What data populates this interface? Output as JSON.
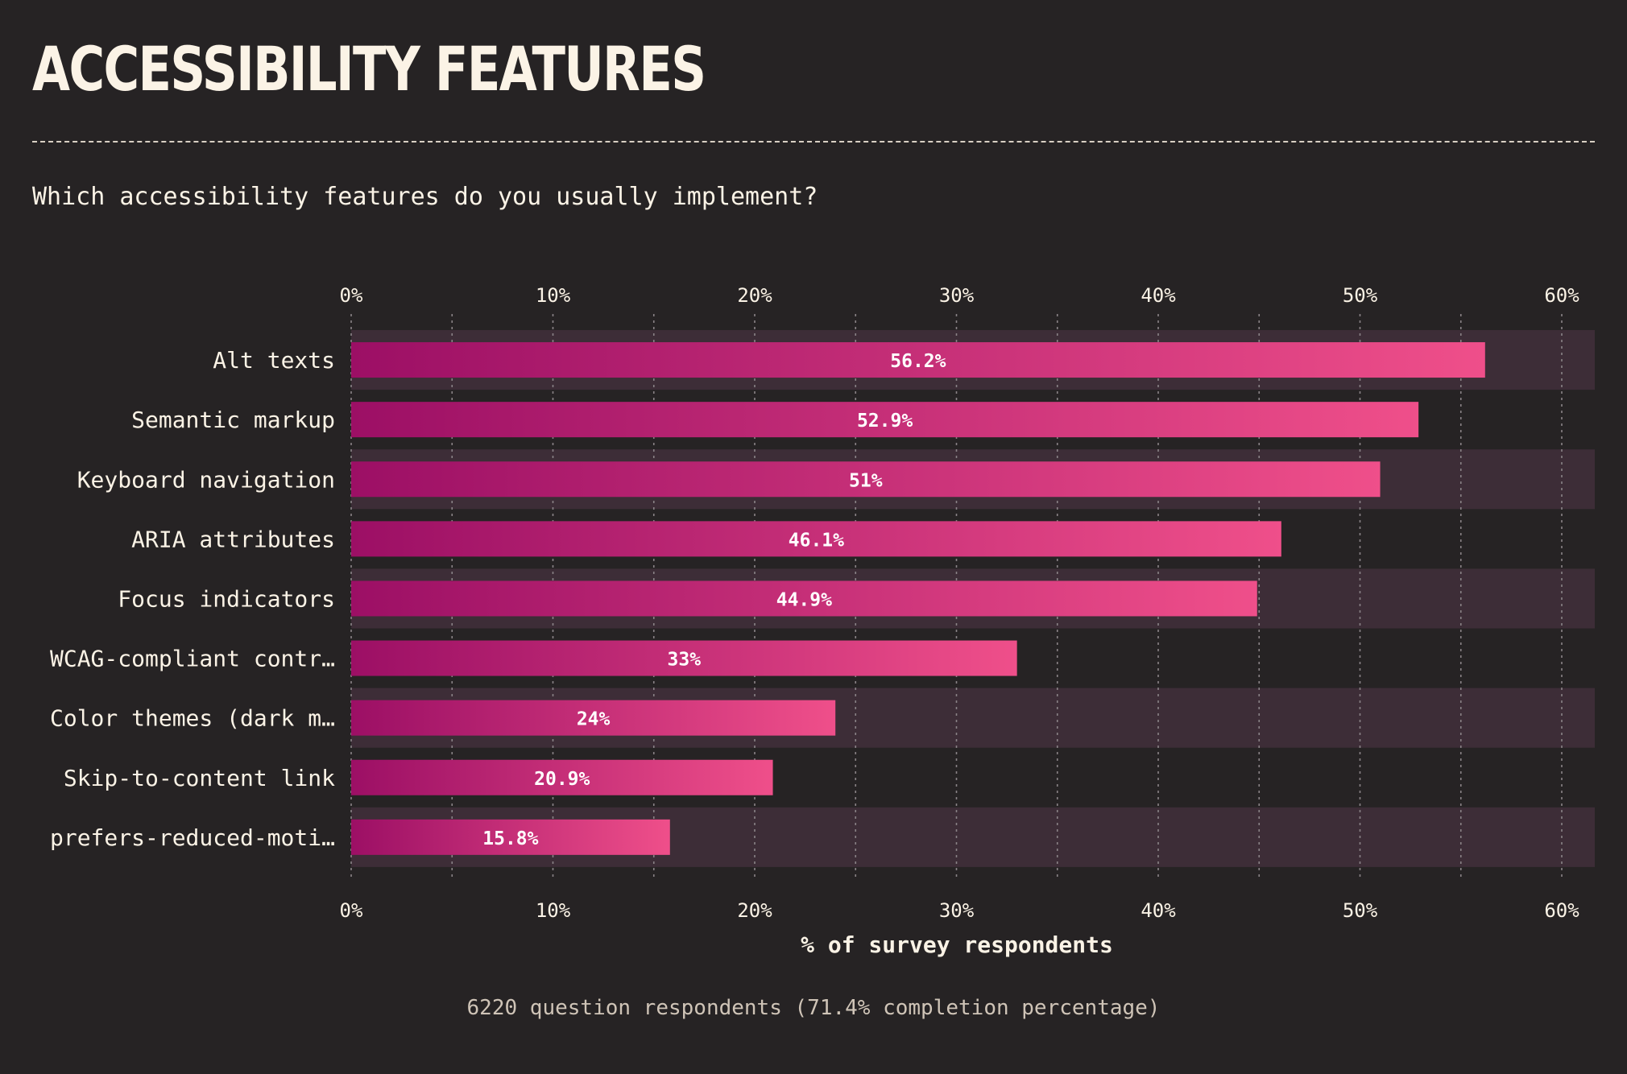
{
  "header": {
    "title": "ACCESSIBILITY FEATURES",
    "question": "Which accessibility features do you usually implement?"
  },
  "footer": {
    "note": "6220 question respondents (71.4% completion percentage)"
  },
  "colors": {
    "background": "#262324",
    "band": "#3d2d37",
    "bar_start": "#9c0f65",
    "bar_end": "#ef4f8a",
    "text": "#fbf3e6",
    "grid": "#8a8387"
  },
  "chart_data": {
    "type": "bar",
    "orientation": "horizontal",
    "categories": [
      "Alt texts",
      "Semantic markup",
      "Keyboard navigation",
      "ARIA attributes",
      "Focus indicators",
      "WCAG-compliant contr…",
      "Color themes (dark m…",
      "Skip-to-content link",
      "prefers-reduced-moti…"
    ],
    "values": [
      56.2,
      52.9,
      51,
      46.1,
      44.9,
      33,
      24,
      20.9,
      15.8
    ],
    "value_labels": [
      "56.2%",
      "52.9%",
      "51%",
      "46.1%",
      "44.9%",
      "33%",
      "24%",
      "20.9%",
      "15.8%"
    ],
    "xlabel": "% of survey respondents",
    "xlim": [
      0,
      62
    ],
    "ticks": [
      0,
      10,
      20,
      30,
      40,
      50,
      60
    ],
    "tick_labels": [
      "0%",
      "10%",
      "20%",
      "30%",
      "40%",
      "50%",
      "60%"
    ],
    "tick_axes": "top-and-bottom",
    "grid": true
  }
}
